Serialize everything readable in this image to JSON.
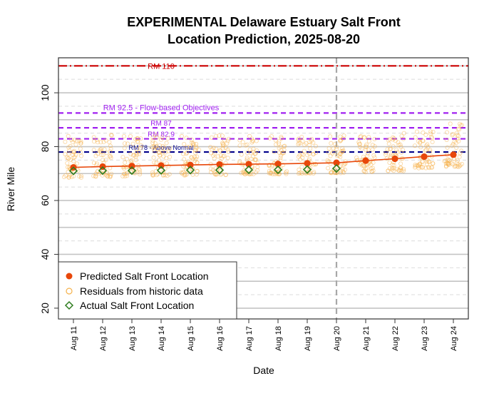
{
  "chart_data": {
    "type": "scatter",
    "title_line1": "EXPERIMENTAL Delaware Estuary Salt Front",
    "title_line2": "Location Prediction, 2025-08-20",
    "xlabel": "Date",
    "ylabel": "River Mile",
    "ylim": [
      16,
      113
    ],
    "yticks": [
      20,
      40,
      60,
      80,
      100
    ],
    "grid": true,
    "categories": [
      "Aug 11",
      "Aug 12",
      "Aug 13",
      "Aug 14",
      "Aug 15",
      "Aug 16",
      "Aug 17",
      "Aug 18",
      "Aug 19",
      "Aug 20",
      "Aug 21",
      "Aug 22",
      "Aug 23",
      "Aug 24"
    ],
    "forecast_divider": "Aug 20",
    "reference_lines": [
      {
        "label": "RM 110",
        "value": 110,
        "color": "#cc0000",
        "style": "dashdot"
      },
      {
        "label": "RM 92.5 - Flow-based Objectives",
        "value": 92.5,
        "color": "#a020f0",
        "style": "dashed"
      },
      {
        "label": "RM 87",
        "value": 87,
        "color": "#a020f0",
        "style": "dashed"
      },
      {
        "label": "RM 82.9",
        "value": 82.9,
        "color": "#a020f0",
        "style": "dashed"
      },
      {
        "label": "RM 78 - Above Normal",
        "value": 78,
        "color": "#00008b",
        "style": "dashed"
      }
    ],
    "series": [
      {
        "name": "Predicted Salt Front Location",
        "color": "#e8470a",
        "values": [
          72.3,
          72.6,
          72.8,
          73.0,
          73.2,
          73.4,
          73.5,
          73.6,
          73.8,
          74.0,
          74.8,
          75.5,
          76.3,
          77.0
        ]
      },
      {
        "name": "Residuals from historic data",
        "color": "#f5b14a"
      },
      {
        "name": "Actual Salt Front Location",
        "color": "#2e7d1f",
        "values": [
          71.0,
          71.1,
          71.1,
          71.2,
          71.3,
          71.3,
          71.4,
          71.4,
          71.5,
          71.9,
          null,
          null,
          null,
          null
        ]
      }
    ],
    "residual_ranges": [
      [
        68.5,
        84.0
      ],
      [
        68.8,
        84.5
      ],
      [
        69.0,
        84.0
      ],
      [
        69.2,
        84.5
      ],
      [
        69.3,
        84.0
      ],
      [
        69.5,
        84.5
      ],
      [
        69.7,
        84.0
      ],
      [
        69.8,
        84.5
      ],
      [
        70.0,
        84.0
      ],
      [
        70.2,
        85.0
      ],
      [
        70.5,
        84.0
      ],
      [
        71.0,
        85.0
      ],
      [
        72.0,
        86.0
      ],
      [
        72.5,
        89.0
      ]
    ],
    "legend_position": "bottom-left"
  }
}
